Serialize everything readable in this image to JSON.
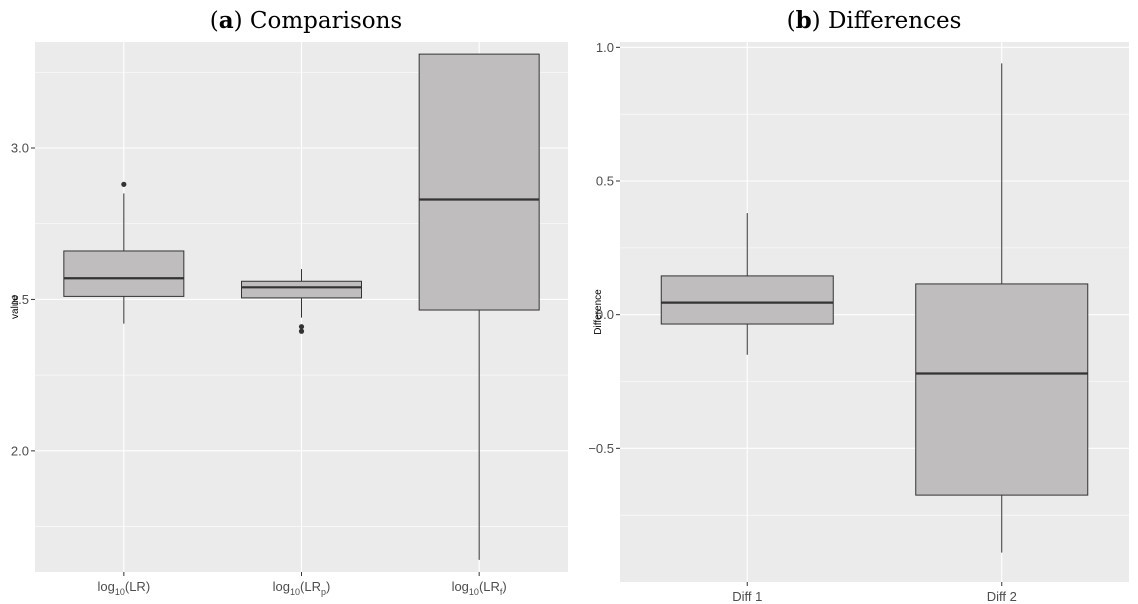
{
  "chart_data": [
    {
      "type": "box",
      "title_prefix": "(",
      "title_letter": "a",
      "title_suffix": ") Comparisons",
      "ylabel": "value",
      "xlabel": "",
      "ylim": [
        1.6,
        3.35
      ],
      "yticks": [
        2.0,
        2.5,
        3.0
      ],
      "ytick_labels": [
        "2.0",
        "2.5",
        "3.0"
      ],
      "categories": [
        {
          "base": "log",
          "sub": "10",
          "open": "(LR",
          "inner_sub": "",
          "close": ")"
        },
        {
          "base": "log",
          "sub": "10",
          "open": "(LR",
          "inner_sub": "p",
          "close": ")"
        },
        {
          "base": "log",
          "sub": "10",
          "open": "(LR",
          "inner_sub": "f",
          "close": ")"
        }
      ],
      "boxes": [
        {
          "lower_whisker": 2.42,
          "q1": 2.51,
          "median": 2.57,
          "q3": 2.66,
          "upper_whisker": 2.85,
          "outliers": [
            2.88
          ]
        },
        {
          "lower_whisker": 2.44,
          "q1": 2.505,
          "median": 2.54,
          "q3": 2.56,
          "upper_whisker": 2.6,
          "outliers": [
            2.41,
            2.395
          ]
        },
        {
          "lower_whisker": 1.64,
          "q1": 2.465,
          "median": 2.83,
          "q3": 3.31,
          "upper_whisker": 3.31,
          "outliers": []
        }
      ],
      "grid": true,
      "box_color": "#bfbdbe",
      "panel_color": "#ebebeb"
    },
    {
      "type": "box",
      "title_prefix": "(",
      "title_letter": "b",
      "title_suffix": ") Differences",
      "ylabel": "Difference",
      "xlabel": "",
      "ylim": [
        -1.0,
        1.02
      ],
      "yticks": [
        -0.5,
        0.0,
        0.5,
        1.0
      ],
      "ytick_labels": [
        "−0.5",
        "0.0",
        "0.5",
        "1.0"
      ],
      "categories": [
        {
          "base": "Diff 1",
          "sub": "",
          "open": "",
          "inner_sub": "",
          "close": ""
        },
        {
          "base": "Diff 2",
          "sub": "",
          "open": "",
          "inner_sub": "",
          "close": ""
        }
      ],
      "boxes": [
        {
          "lower_whisker": -0.15,
          "q1": -0.035,
          "median": 0.045,
          "q3": 0.145,
          "upper_whisker": 0.38,
          "outliers": []
        },
        {
          "lower_whisker": -0.89,
          "q1": -0.675,
          "median": -0.22,
          "q3": 0.115,
          "upper_whisker": 0.94,
          "outliers": []
        }
      ],
      "grid": true,
      "box_color": "#bfbdbe",
      "panel_color": "#ebebeb"
    }
  ]
}
